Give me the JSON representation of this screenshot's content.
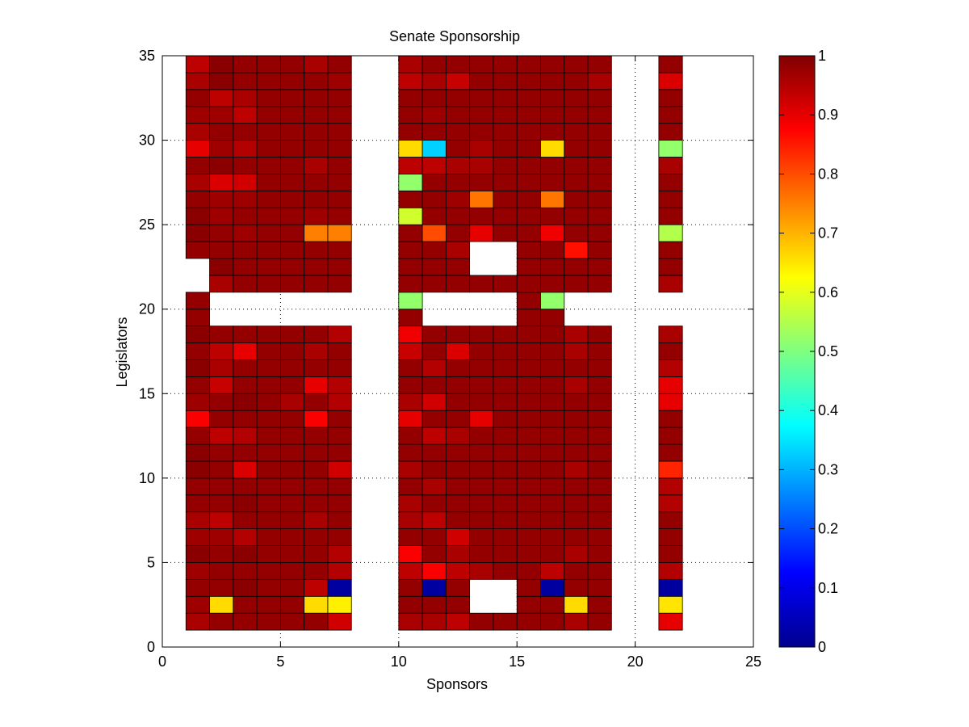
{
  "chart_data": {
    "type": "heatmap",
    "title": "Senate Sponsorship",
    "xlabel": "Sponsors",
    "ylabel": "Legislators",
    "xlim": [
      0,
      25
    ],
    "ylim": [
      0,
      35
    ],
    "x_ticks": [
      0,
      5,
      10,
      15,
      20,
      25
    ],
    "y_ticks": [
      0,
      5,
      10,
      15,
      20,
      25,
      30,
      35
    ],
    "grid": "dotted",
    "colormap": "jet",
    "clim": [
      0,
      1
    ],
    "colorbar_ticks": [
      "0",
      "0.1",
      "0.2",
      "0.3",
      "0.4",
      "0.5",
      "0.6",
      "0.7",
      "0.8",
      "0.9",
      "1"
    ],
    "note_cells": "x_start = left edge of each column in sponsor units; each row lists values from y=1 (bottom) upward, null = blank cell",
    "columns": [
      {
        "x_start": 1,
        "values": [
          0.96,
          0.97,
          0.98,
          0.97,
          0.99,
          0.97,
          0.96,
          0.98,
          0.98,
          0.99,
          0.99,
          0.98,
          0.88,
          0.97,
          0.98,
          0.99,
          0.98,
          0.99,
          0.98,
          0.98,
          null,
          null,
          0.98,
          0.99,
          0.99,
          0.98,
          0.96,
          0.98,
          0.9,
          0.96,
          0.97,
          0.98,
          0.96,
          0.94
        ]
      },
      {
        "x_start": 2,
        "values": [
          0.98,
          0.66,
          0.98,
          0.98,
          0.98,
          0.97,
          0.94,
          0.98,
          0.98,
          0.98,
          0.98,
          0.94,
          0.98,
          0.98,
          0.93,
          0.96,
          0.94,
          0.98,
          null,
          null,
          0.96,
          0.99,
          0.98,
          0.98,
          0.97,
          0.97,
          0.91,
          0.99,
          0.97,
          0.98,
          0.97,
          0.94,
          0.99,
          0.99
        ]
      },
      {
        "x_start": 3,
        "values": [
          0.98,
          0.98,
          0.99,
          0.98,
          0.99,
          0.95,
          0.98,
          0.99,
          0.98,
          0.91,
          0.98,
          0.95,
          0.98,
          0.99,
          0.98,
          0.98,
          0.9,
          0.98,
          null,
          null,
          0.98,
          0.98,
          0.98,
          0.97,
          0.98,
          0.97,
          0.92,
          0.98,
          0.95,
          0.98,
          0.94,
          0.96,
          0.98,
          0.98
        ]
      },
      {
        "x_start": 4,
        "values": [
          0.98,
          0.98,
          0.98,
          0.98,
          0.98,
          0.98,
          0.98,
          0.98,
          0.98,
          0.98,
          0.98,
          0.98,
          0.98,
          0.98,
          0.98,
          0.98,
          0.98,
          0.98,
          null,
          null,
          0.98,
          0.98,
          0.98,
          0.98,
          0.98,
          0.98,
          0.98,
          0.98,
          0.98,
          0.98,
          0.98,
          0.98,
          0.98,
          0.98
        ]
      },
      {
        "x_start": 5,
        "values": [
          0.98,
          0.98,
          0.98,
          0.98,
          0.98,
          0.98,
          0.98,
          0.98,
          0.98,
          0.98,
          0.98,
          0.98,
          0.98,
          0.96,
          0.98,
          0.98,
          0.98,
          0.98,
          null,
          null,
          0.98,
          0.98,
          0.98,
          0.98,
          0.98,
          0.98,
          0.98,
          0.98,
          0.98,
          0.98,
          0.98,
          0.98,
          0.98,
          0.98
        ]
      },
      {
        "x_start": 6,
        "values": [
          0.98,
          0.66,
          0.94,
          0.98,
          0.98,
          0.98,
          0.96,
          0.98,
          0.98,
          0.98,
          0.98,
          0.98,
          0.88,
          0.98,
          0.9,
          0.98,
          0.96,
          0.98,
          null,
          null,
          0.98,
          0.98,
          0.98,
          0.75,
          0.97,
          0.98,
          0.98,
          0.96,
          0.98,
          0.98,
          0.98,
          0.98,
          0.98,
          0.96
        ]
      },
      {
        "x_start": 7,
        "values": [
          0.92,
          0.64,
          0.02,
          0.95,
          0.95,
          0.98,
          0.98,
          0.98,
          0.98,
          0.92,
          0.98,
          0.98,
          0.98,
          0.95,
          0.95,
          0.98,
          0.98,
          0.95,
          null,
          null,
          0.98,
          0.98,
          0.98,
          0.75,
          0.98,
          0.98,
          0.98,
          0.98,
          0.98,
          0.98,
          0.98,
          0.98,
          0.97,
          0.98
        ]
      },
      {
        "x_start": 10,
        "values": [
          0.96,
          0.98,
          0.98,
          0.94,
          0.88,
          0.98,
          0.96,
          0.96,
          0.98,
          0.96,
          0.98,
          0.98,
          0.9,
          0.96,
          0.98,
          0.98,
          0.93,
          0.89,
          0.98,
          0.52,
          0.98,
          0.98,
          0.98,
          0.98,
          0.58,
          0.98,
          0.52,
          0.94,
          0.66,
          0.98,
          0.98,
          0.98,
          0.94,
          0.96
        ]
      },
      {
        "x_start": 11,
        "values": [
          0.96,
          0.98,
          0.02,
          0.88,
          0.98,
          0.98,
          0.94,
          0.98,
          0.96,
          0.98,
          0.98,
          0.94,
          0.98,
          0.92,
          0.98,
          0.95,
          0.98,
          0.98,
          null,
          null,
          0.98,
          0.98,
          0.98,
          0.8,
          0.98,
          0.98,
          0.98,
          0.94,
          0.33,
          0.98,
          0.97,
          0.98,
          0.96,
          0.98
        ]
      },
      {
        "x_start": 12,
        "values": [
          0.94,
          0.98,
          0.98,
          0.94,
          0.96,
          0.92,
          0.98,
          0.98,
          0.98,
          0.98,
          0.98,
          0.96,
          0.98,
          0.98,
          0.98,
          0.98,
          0.91,
          0.98,
          null,
          null,
          0.98,
          0.98,
          0.96,
          0.98,
          0.98,
          0.97,
          0.98,
          0.96,
          0.98,
          0.98,
          0.98,
          0.98,
          0.93,
          0.98
        ]
      },
      {
        "x_start": 13,
        "values": [
          0.98,
          null,
          null,
          0.96,
          0.98,
          0.98,
          0.98,
          0.98,
          0.98,
          0.98,
          0.98,
          0.98,
          0.9,
          0.98,
          0.98,
          0.98,
          0.98,
          0.98,
          null,
          null,
          0.98,
          null,
          null,
          0.9,
          0.98,
          0.76,
          0.98,
          0.96,
          0.96,
          0.98,
          0.98,
          0.98,
          0.98,
          0.98
        ]
      },
      {
        "x_start": 14,
        "values": [
          0.98,
          null,
          null,
          0.98,
          0.98,
          0.98,
          0.98,
          0.98,
          0.98,
          0.98,
          0.98,
          0.98,
          0.98,
          0.98,
          0.98,
          0.98,
          0.98,
          0.98,
          null,
          null,
          0.98,
          null,
          null,
          0.98,
          0.98,
          0.98,
          0.98,
          0.98,
          0.98,
          0.98,
          0.98,
          0.98,
          0.98,
          0.98
        ]
      },
      {
        "x_start": 15,
        "values": [
          0.98,
          0.98,
          0.98,
          0.98,
          0.98,
          0.98,
          0.98,
          0.98,
          0.98,
          0.98,
          0.98,
          0.98,
          0.98,
          0.98,
          0.98,
          0.98,
          0.98,
          0.98,
          0.98,
          0.98,
          0.98,
          0.98,
          0.98,
          0.98,
          0.98,
          0.98,
          0.98,
          0.98,
          0.98,
          0.98,
          0.98,
          0.98,
          0.98,
          0.98
        ]
      },
      {
        "x_start": 16,
        "values": [
          0.98,
          0.98,
          0.02,
          0.94,
          0.98,
          0.98,
          0.98,
          0.98,
          0.98,
          0.98,
          0.98,
          0.98,
          0.98,
          0.98,
          0.98,
          0.98,
          0.98,
          0.98,
          0.98,
          0.52,
          0.98,
          0.98,
          0.98,
          0.89,
          0.98,
          0.76,
          0.98,
          0.98,
          0.66,
          0.98,
          0.98,
          0.98,
          0.98,
          0.98
        ]
      },
      {
        "x_start": 17,
        "values": [
          0.96,
          0.66,
          0.98,
          0.98,
          0.96,
          0.98,
          0.98,
          0.98,
          0.98,
          0.96,
          0.98,
          0.98,
          0.98,
          0.98,
          0.96,
          0.98,
          0.96,
          0.96,
          null,
          null,
          0.98,
          0.98,
          0.86,
          0.98,
          0.98,
          0.98,
          0.98,
          0.98,
          0.98,
          0.98,
          0.98,
          0.98,
          0.98,
          0.98
        ]
      },
      {
        "x_start": 18,
        "values": [
          0.98,
          0.98,
          0.98,
          0.98,
          0.98,
          0.98,
          0.98,
          0.98,
          0.98,
          0.98,
          0.98,
          0.98,
          0.98,
          0.98,
          0.98,
          0.98,
          0.98,
          0.98,
          null,
          null,
          0.98,
          0.98,
          0.98,
          0.98,
          0.98,
          0.98,
          0.98,
          0.98,
          0.98,
          0.98,
          0.98,
          0.98,
          0.96,
          0.98
        ]
      },
      {
        "x_start": 21,
        "values": [
          0.9,
          0.65,
          0.02,
          0.95,
          0.98,
          0.98,
          0.98,
          0.95,
          0.95,
          0.84,
          0.98,
          0.98,
          0.98,
          0.9,
          0.9,
          0.95,
          0.98,
          0.96,
          null,
          null,
          0.96,
          0.98,
          0.98,
          0.55,
          0.98,
          0.98,
          0.98,
          0.96,
          0.52,
          0.98,
          0.98,
          0.98,
          0.91,
          0.98
        ]
      }
    ]
  }
}
